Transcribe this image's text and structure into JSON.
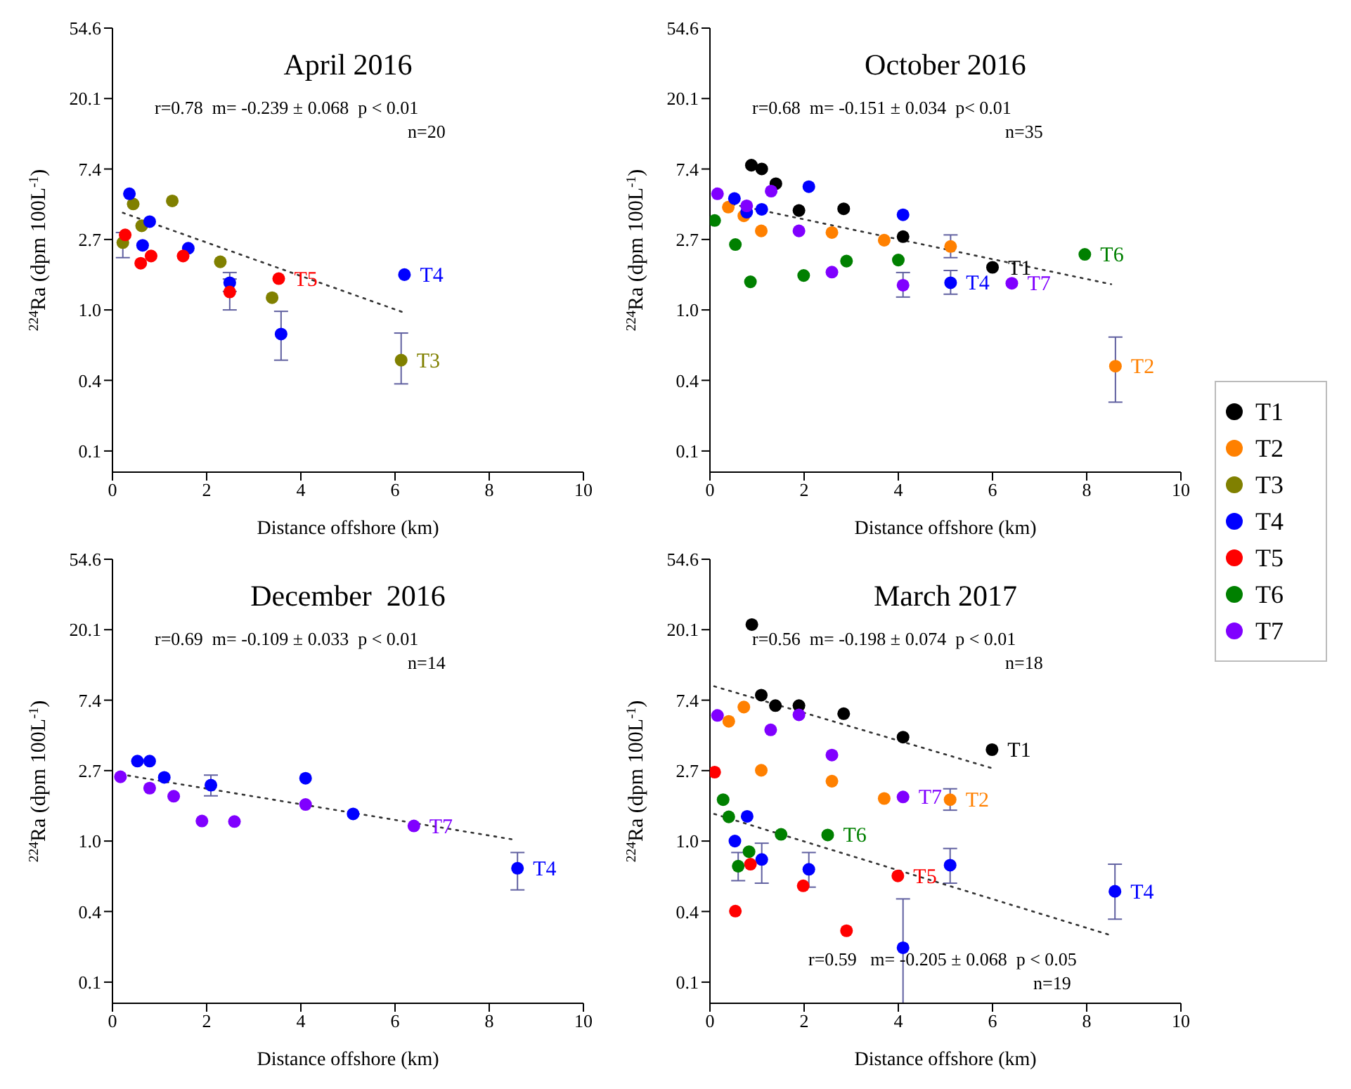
{
  "chart_data": [
    {
      "type": "scatter",
      "title": "April 2016",
      "xlabel": "Distance offshore (km)",
      "ylabel": "$^{224}$Ra (dpm 100L$^{-1}$)",
      "log": "y",
      "marker": "circle",
      "xlim": [
        0,
        10
      ],
      "xticks": [
        0,
        2,
        4,
        6,
        8,
        10
      ],
      "ylim": [
        0.1,
        54.6
      ],
      "yticks": [
        {
          "value": 0.135,
          "label": "0.1"
        },
        {
          "value": 0.368,
          "label": "0.4"
        },
        {
          "value": 1,
          "label": "1.0"
        },
        {
          "value": 2.718,
          "label": "2.7"
        },
        {
          "value": 7.389,
          "label": "7.4"
        },
        {
          "value": 20.09,
          "label": "20.1"
        },
        {
          "value": 54.6,
          "label": "54.6"
        }
      ],
      "legend": "right",
      "annotations": [
        "r=0.78  m= -0.239 ± 0.068  p < 0.01",
        "n=20"
      ],
      "series": [
        {
          "name": "T3",
          "color": "#808000",
          "x": [
            0.22,
            0.44,
            0.62,
            1.27,
            2.29,
            3.39,
            6.13
          ],
          "values": [
            2.6,
            4.5,
            3.3,
            4.7,
            1.98,
            1.19,
            0.49
          ],
          "errors": [
            [
              2.1,
              3.0
            ],
            null,
            null,
            null,
            null,
            null,
            [
              0.35,
              0.72
            ]
          ]
        },
        {
          "name": "T4",
          "color": "#0000ff",
          "x": [
            0.36,
            0.79,
            0.64,
            1.61,
            2.49,
            3.58,
            6.2
          ],
          "values": [
            5.2,
            3.5,
            2.5,
            2.4,
            1.47,
            0.71,
            1.65
          ],
          "errors": [
            null,
            null,
            null,
            null,
            [
              1.3,
              1.7
            ],
            [
              0.49,
              0.98
            ],
            null
          ]
        },
        {
          "name": "T5",
          "color": "#ff0000",
          "x": [
            0.27,
            0.6,
            0.82,
            1.5,
            2.49,
            3.53
          ],
          "values": [
            2.9,
            1.94,
            2.15,
            2.15,
            1.29,
            1.56
          ],
          "errors": [
            null,
            null,
            null,
            null,
            [
              1.0,
              1.55
            ],
            null
          ]
        },
        {
          "type": "line",
          "color": "#333333",
          "line_style": "dotted",
          "marker": "none",
          "x": [
            0.22,
            6.16
          ],
          "values": [
            3.97,
            0.97
          ]
        }
      ]
    },
    {
      "type": "scatter",
      "title": "October 2016",
      "xlabel": "Distance offshore (km)",
      "ylabel": "$^{224}$Ra (dpm 100L$^{-1}$)",
      "log": "y",
      "marker": "circle",
      "xlim": [
        0,
        10
      ],
      "xticks": [
        0,
        2,
        4,
        6,
        8,
        10
      ],
      "ylim": [
        0.1,
        54.6
      ],
      "yticks": [
        {
          "value": 0.135,
          "label": "0.1"
        },
        {
          "value": 0.368,
          "label": "0.4"
        },
        {
          "value": 1,
          "label": "1.0"
        },
        {
          "value": 2.718,
          "label": "2.7"
        },
        {
          "value": 7.389,
          "label": "7.4"
        },
        {
          "value": 20.09,
          "label": "20.1"
        },
        {
          "value": 54.6,
          "label": "54.6"
        }
      ],
      "legend": "right",
      "annotations": [
        "r=0.68  m= -0.151 ± 0.034  p< 0.01",
        "n=35"
      ],
      "series": [
        {
          "name": "T1",
          "color": "#000000",
          "x": [
            0.88,
            1.1,
            1.4,
            1.89,
            2.84,
            4.1,
            6.0
          ],
          "values": [
            7.8,
            7.4,
            6.0,
            4.1,
            4.2,
            2.83,
            1.83
          ]
        },
        {
          "name": "T2",
          "color": "#ff8000",
          "x": [
            0.39,
            0.72,
            1.09,
            2.59,
            3.7,
            5.11,
            8.61
          ],
          "values": [
            4.3,
            3.8,
            3.07,
            3.0,
            2.69,
            2.46,
            0.45
          ],
          "errors": [
            null,
            null,
            null,
            null,
            null,
            [
              2.1,
              2.9
            ],
            [
              0.27,
              0.68
            ]
          ]
        },
        {
          "name": "T4",
          "color": "#0000ff",
          "x": [
            0.52,
            0.78,
            1.1,
            2.1,
            4.1,
            5.11
          ],
          "values": [
            4.86,
            4.0,
            4.17,
            5.75,
            3.86,
            1.47
          ],
          "errors": [
            null,
            null,
            null,
            null,
            null,
            [
              1.25,
              1.75
            ]
          ]
        },
        {
          "name": "T6",
          "color": "#008000",
          "x": [
            0.1,
            0.54,
            0.86,
            1.99,
            2.9,
            4.0,
            7.96
          ],
          "values": [
            3.56,
            2.53,
            1.49,
            1.63,
            2.0,
            2.03,
            2.2
          ]
        },
        {
          "name": "T7",
          "color": "#8000ff",
          "x": [
            0.16,
            0.78,
            1.3,
            1.89,
            2.59,
            4.1,
            6.41
          ],
          "values": [
            5.2,
            4.38,
            5.4,
            3.07,
            1.71,
            1.42,
            1.46
          ],
          "errors": [
            null,
            null,
            null,
            null,
            null,
            [
              1.2,
              1.7
            ],
            null
          ]
        },
        {
          "type": "line",
          "color": "#333333",
          "line_style": "dotted",
          "marker": "none",
          "x": [
            0.48,
            8.52
          ],
          "values": [
            4.48,
            1.44
          ]
        }
      ]
    },
    {
      "type": "scatter",
      "title": "December  2016",
      "xlabel": "Distance offshore (km)",
      "ylabel": "$^{224}$Ra (dpm 100L$^{-1}$)",
      "log": "y",
      "marker": "circle",
      "xlim": [
        0,
        10
      ],
      "xticks": [
        0,
        2,
        4,
        6,
        8,
        10
      ],
      "ylim": [
        0.1,
        54.6
      ],
      "yticks": [
        {
          "value": 0.135,
          "label": "0.1"
        },
        {
          "value": 0.368,
          "label": "0.4"
        },
        {
          "value": 1,
          "label": "1.0"
        },
        {
          "value": 2.718,
          "label": "2.7"
        },
        {
          "value": 7.389,
          "label": "7.4"
        },
        {
          "value": 20.09,
          "label": "20.1"
        },
        {
          "value": 54.6,
          "label": "54.6"
        }
      ],
      "legend": "right",
      "annotations": [
        "r=0.69  m= -0.109 ± 0.033  p < 0.01",
        "n=14"
      ],
      "series": [
        {
          "name": "T4",
          "color": "#0000ff",
          "x": [
            0.53,
            0.79,
            1.1,
            2.09,
            4.1,
            5.11,
            8.6
          ],
          "values": [
            3.11,
            3.11,
            2.47,
            2.21,
            2.44,
            1.47,
            0.68
          ],
          "errors": [
            null,
            null,
            null,
            [
              1.9,
              2.55
            ],
            null,
            null,
            [
              0.5,
              0.85
            ]
          ]
        },
        {
          "name": "T7",
          "color": "#8000ff",
          "x": [
            0.17,
            0.79,
            1.3,
            1.9,
            2.59,
            4.1,
            6.4
          ],
          "values": [
            2.49,
            2.12,
            1.89,
            1.33,
            1.32,
            1.68,
            1.24
          ]
        },
        {
          "type": "line",
          "color": "#333333",
          "line_style": "dotted",
          "marker": "none",
          "x": [
            0.17,
            8.53
          ],
          "values": [
            2.58,
            1.02
          ]
        }
      ]
    },
    {
      "type": "scatter",
      "title": "March 2017",
      "xlabel": "Distance offshore (km)",
      "ylabel": "$^{224}$Ra (dpm 100L$^{-1}$)",
      "log": "y",
      "marker": "circle",
      "legend": "right",
      "xlim": [
        0,
        10
      ],
      "xticks": [
        0,
        2,
        4,
        6,
        8,
        10
      ],
      "ylim": [
        0.1,
        54.6
      ],
      "yticks": [
        {
          "value": 0.135,
          "label": "0.1"
        },
        {
          "value": 0.368,
          "label": "0.4"
        },
        {
          "value": 1,
          "label": "1.0"
        },
        {
          "value": 2.718,
          "label": "2.7"
        },
        {
          "value": 7.389,
          "label": "7.4"
        },
        {
          "value": 20.09,
          "label": "20.1"
        },
        {
          "value": 54.6,
          "label": "54.6"
        }
      ],
      "annotations": [
        "r=0.56  m= -0.198 ± 0.074  p < 0.01",
        "n=18",
        "r=0.59   m= -0.205 ± 0.068  p < 0.05",
        "n=19"
      ],
      "series": [
        {
          "name": "T1",
          "color": "#000000",
          "x": [
            0.89,
            1.09,
            1.39,
            1.89,
            2.84,
            4.1,
            5.99
          ],
          "values": [
            21.6,
            7.93,
            6.84,
            6.84,
            6.1,
            4.37,
            3.66
          ]
        },
        {
          "name": "T2",
          "color": "#ff8000",
          "x": [
            0.4,
            0.72,
            1.09,
            2.59,
            3.7,
            5.1
          ],
          "values": [
            5.47,
            6.7,
            2.73,
            2.34,
            1.83,
            1.8
          ],
          "errors": [
            null,
            null,
            null,
            null,
            null,
            [
              1.55,
              2.1
            ]
          ]
        },
        {
          "name": "T4",
          "color": "#0000ff",
          "x": [
            0.53,
            0.79,
            1.1,
            2.1,
            4.1,
            5.1,
            8.6
          ],
          "values": [
            1.0,
            1.42,
            0.77,
            0.67,
            0.22,
            0.71,
            0.49
          ],
          "errors": [
            null,
            null,
            [
              0.55,
              0.97
            ],
            [
              0.52,
              0.85
            ],
            [
              0.1,
              0.44
            ],
            [
              0.55,
              0.9
            ],
            [
              0.33,
              0.72
            ]
          ]
        },
        {
          "name": "T5",
          "color": "#ff0000",
          "x": [
            0.1,
            0.54,
            0.86,
            1.98,
            2.9,
            3.99
          ],
          "values": [
            2.66,
            0.37,
            0.72,
            0.53,
            0.28,
            0.61
          ]
        },
        {
          "name": "T6",
          "color": "#008000",
          "x": [
            0.28,
            0.4,
            0.83,
            0.6,
            1.51,
            2.5
          ],
          "values": [
            1.8,
            1.41,
            0.86,
            0.7,
            1.1,
            1.09
          ],
          "errors": [
            null,
            null,
            null,
            [
              0.57,
              0.85
            ],
            null,
            null
          ]
        },
        {
          "name": "T7",
          "color": "#8000ff",
          "x": [
            0.16,
            1.29,
            1.89,
            2.59,
            4.1
          ],
          "values": [
            5.95,
            4.85,
            6.0,
            3.39,
            1.87
          ]
        },
        {
          "type": "line",
          "color": "#333333",
          "line_style": "dotted",
          "marker": "none",
          "x": [
            0.09,
            5.96
          ],
          "values": [
            9.0,
            2.83
          ]
        },
        {
          "type": "line",
          "color": "#333333",
          "line_style": "dotted",
          "marker": "none",
          "x": [
            0.09,
            8.56
          ],
          "values": [
            1.47,
            0.26
          ]
        }
      ]
    }
  ]
}
